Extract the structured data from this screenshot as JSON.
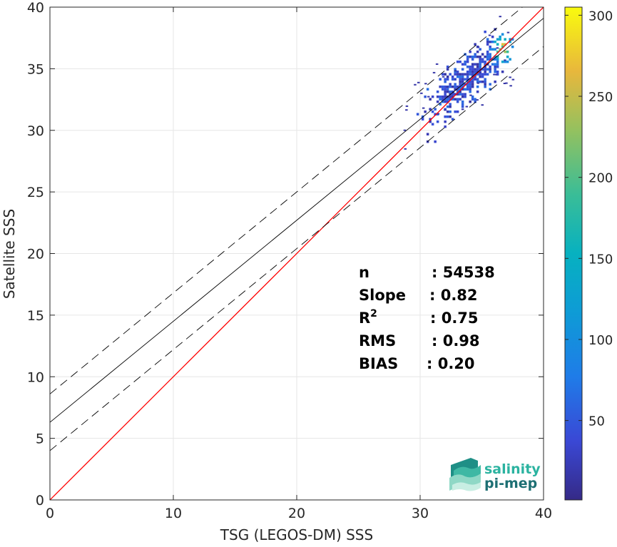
{
  "chart_data": {
    "type": "scatter",
    "subtype": "density-heatmap",
    "xlabel": "TSG (LEGOS-DM) SSS",
    "ylabel": "Satellite SSS",
    "xlim": [
      0,
      40
    ],
    "ylim": [
      0,
      40
    ],
    "xticks": [
      0,
      10,
      20,
      30,
      40
    ],
    "yticks": [
      0,
      5,
      10,
      15,
      20,
      25,
      30,
      35,
      40
    ],
    "grid": true,
    "colorbar": {
      "colormap": "parula",
      "range": [
        1,
        305
      ],
      "ticks": [
        50,
        100,
        150,
        200,
        250,
        300
      ]
    },
    "density_cluster": {
      "x_range": [
        29.5,
        37.5
      ],
      "y_range": [
        28.3,
        38.5
      ],
      "peak": {
        "x": 36.6,
        "y": 36.7,
        "count": 300
      }
    },
    "lines": [
      {
        "role": "identity",
        "color": "#ff0000",
        "intercept": 0,
        "slope": 1
      },
      {
        "role": "regression",
        "color": "#000000",
        "intercept": 6.3,
        "slope": 0.82
      },
      {
        "role": "upper-bound",
        "color": "#000000",
        "style": "dashed",
        "intercept": 8.6,
        "slope": 0.82
      },
      {
        "role": "lower-bound",
        "color": "#000000",
        "style": "dashed",
        "intercept": 4.0,
        "slope": 0.82
      }
    ],
    "stats": [
      {
        "label": "n",
        "sup": "",
        "value": ": 54538"
      },
      {
        "label": "Slope",
        "sup": "",
        "value": ": 0.82"
      },
      {
        "label": "R",
        "sup": "2",
        "value": ": 0.75"
      },
      {
        "label": "RMS",
        "sup": "",
        "value": ": 0.98"
      },
      {
        "label": "BIAS",
        "sup": "",
        "value": ": 0.20"
      }
    ]
  },
  "logo": {
    "line1": "salinity",
    "line2": "pi-mep",
    "color1": "#2bb3a0",
    "color2": "#1d6f73"
  }
}
